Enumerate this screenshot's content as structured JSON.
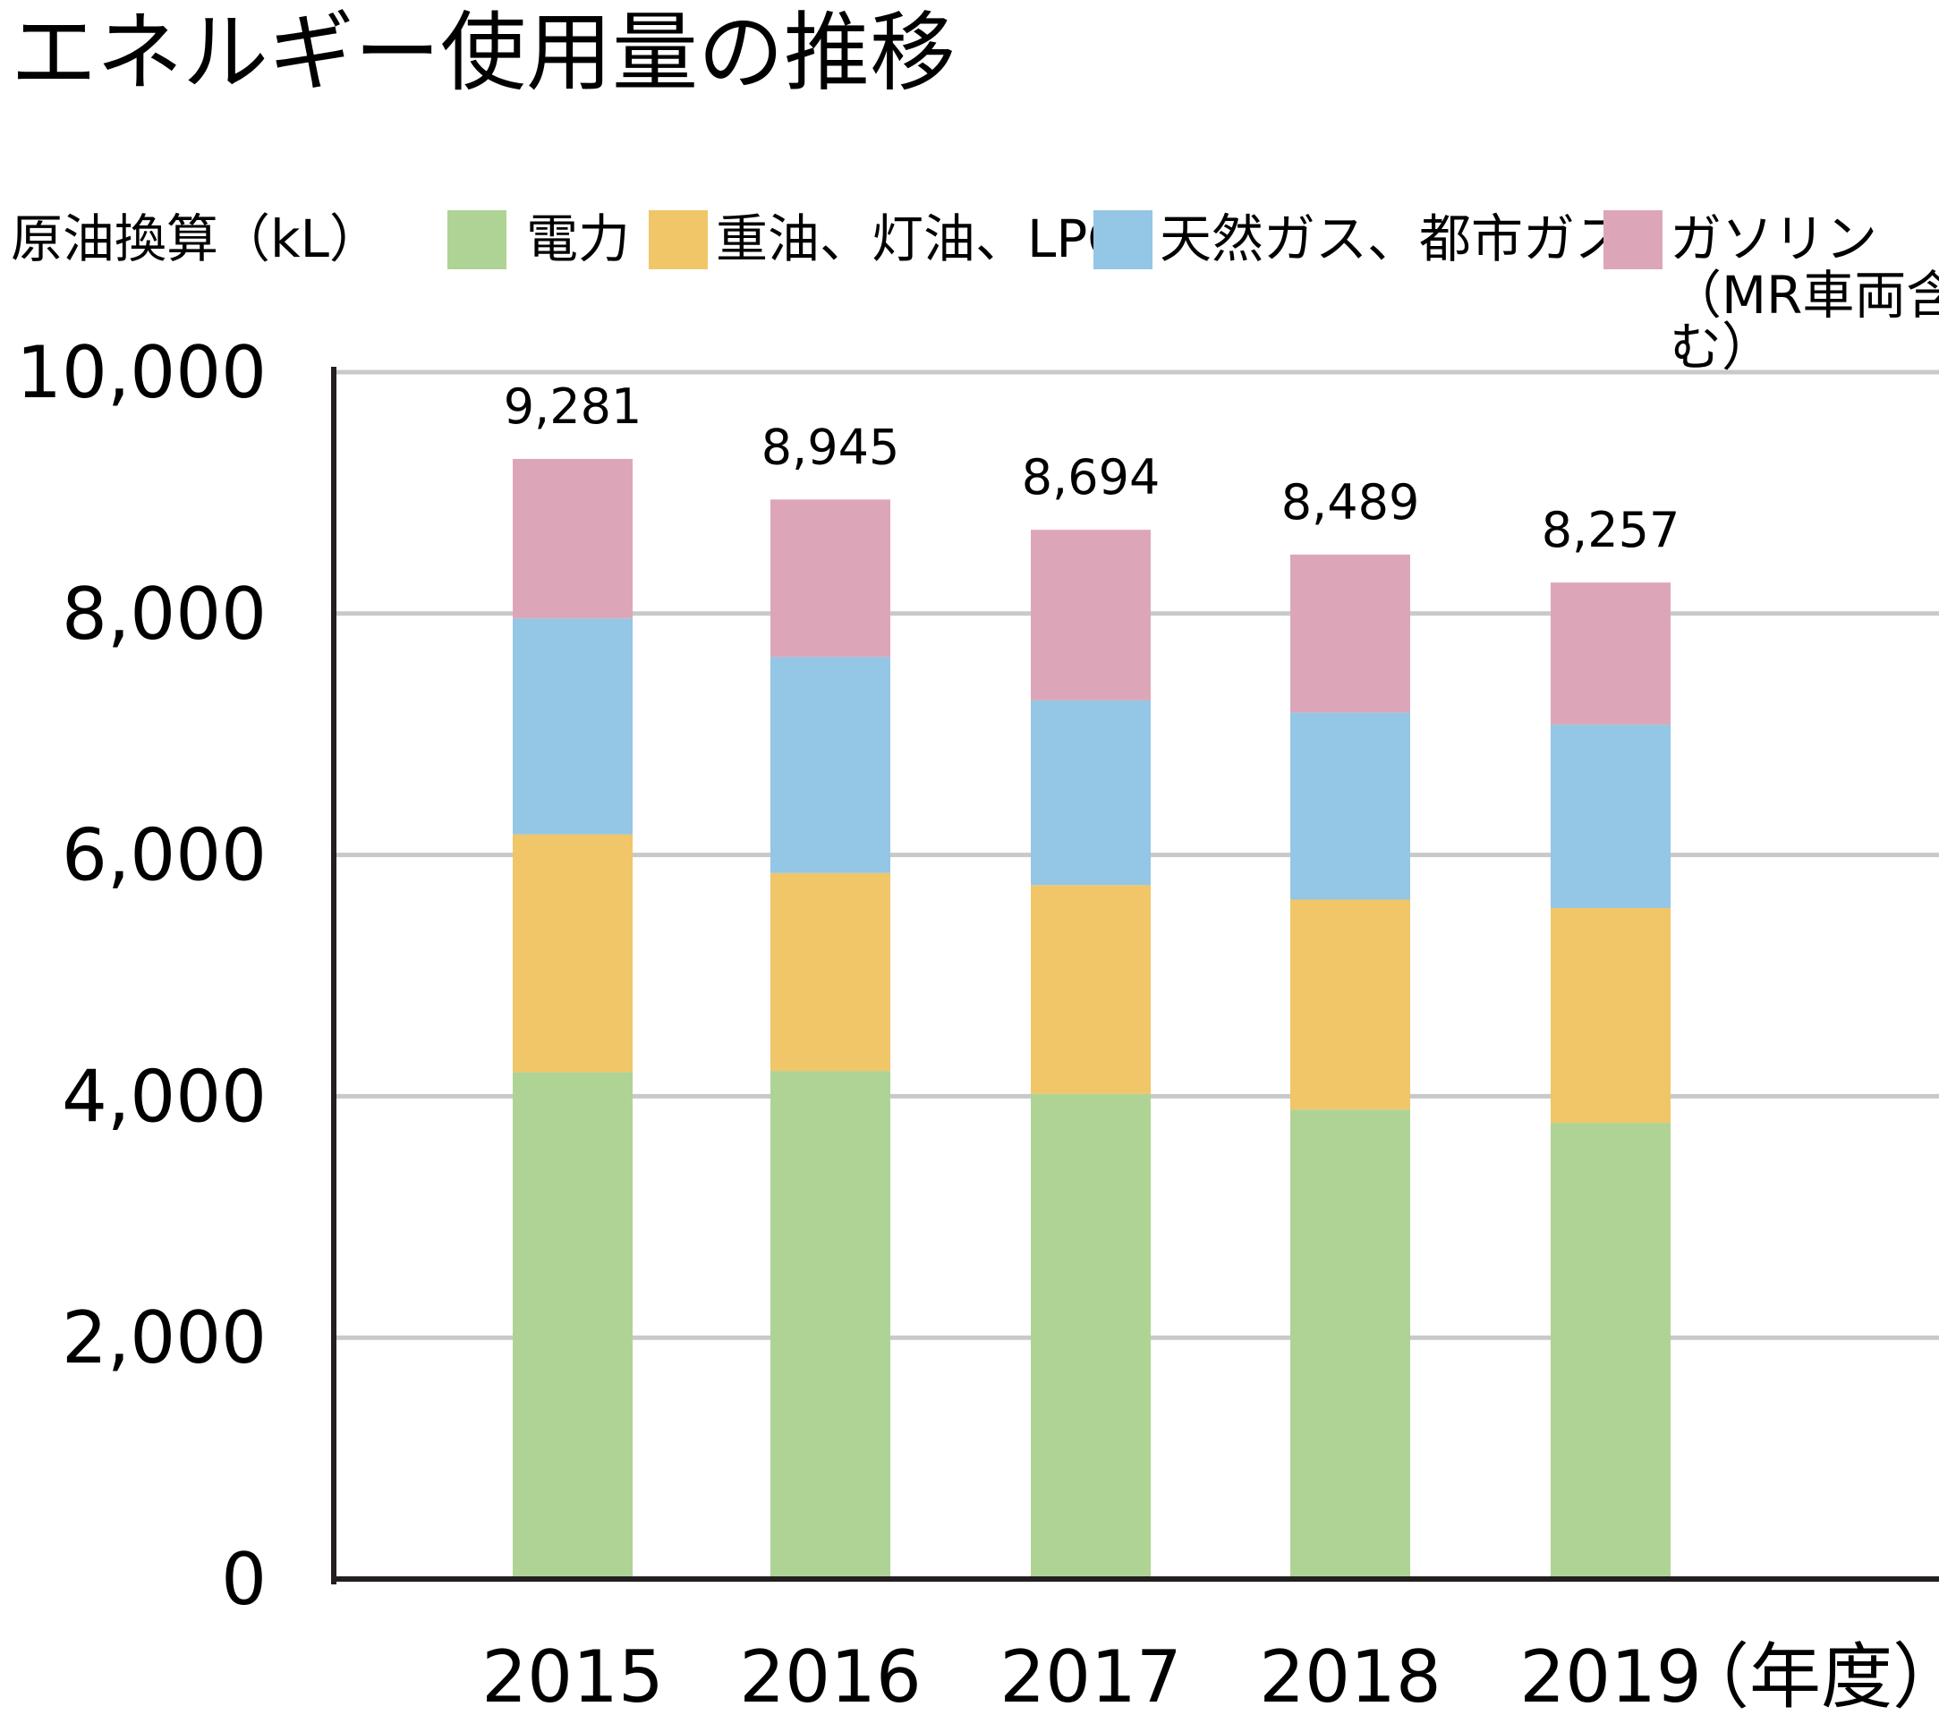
{
  "chart_data": {
    "type": "bar",
    "stacked": true,
    "title": "エネルギー使用量の推移",
    "ylabel": "原油換算（kL）",
    "xlabel": "（年度）",
    "categories": [
      "2015",
      "2016",
      "2017",
      "2018",
      "2019"
    ],
    "series": [
      {
        "name": "電力",
        "color": "#afd395",
        "values": [
          4200,
          4210,
          4020,
          3890,
          3780
        ]
      },
      {
        "name": "重油、灯油、LPG",
        "color": "#f0c668",
        "values": [
          1970,
          1640,
          1730,
          1740,
          1780
        ]
      },
      {
        "name": "天然ガス、都市ガス",
        "color": "#94c6e5",
        "values": [
          1790,
          1790,
          1530,
          1550,
          1520
        ]
      },
      {
        "name": "ガソリン（MR車両含む）",
        "color": "#dda6b8",
        "values": [
          1321,
          1305,
          1414,
          1309,
          1177
        ]
      }
    ],
    "totals": [
      "9,281",
      "8,945",
      "8,694",
      "8,489",
      "8,257"
    ],
    "yticks": [
      "0",
      "2,000",
      "4,000",
      "6,000",
      "8,000",
      "10,000"
    ],
    "ylim": [
      0,
      10000
    ],
    "grid": true,
    "legend": "top"
  }
}
